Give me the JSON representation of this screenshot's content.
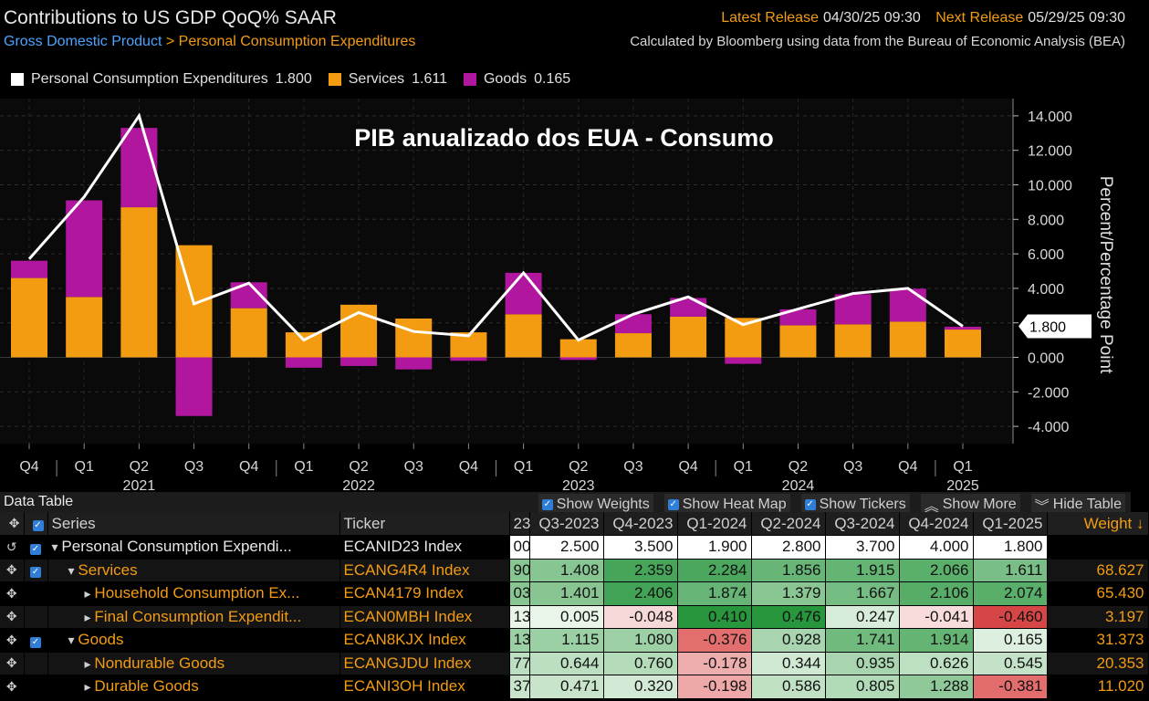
{
  "header": {
    "title": "Contributions to US GDP QoQ% SAAR",
    "breadcrumb_a": "Gross Domestic Product",
    "breadcrumb_sep": ">",
    "breadcrumb_b": "Personal Consumption Expenditures",
    "latest_label": "Latest Release",
    "latest_value": "04/30/25 09:30",
    "next_label": "Next Release",
    "next_value": "05/29/25 09:30",
    "source": "Calculated by Bloomberg using data from the Bureau of Economic Analysis (BEA)"
  },
  "legend": [
    {
      "label": "Personal Consumption Expenditures",
      "value": "1.800",
      "color": "#ffffff"
    },
    {
      "label": "Services",
      "value": "1.611",
      "color": "#f39c12"
    },
    {
      "label": "Goods",
      "value": "0.165",
      "color": "#b0169e"
    }
  ],
  "chart_data": {
    "type": "bar",
    "title": "PIB anualizado dos EUA - Consumo",
    "ylabel": "Percent/Percentage Point",
    "ylim": [
      -5,
      15
    ],
    "yticks": [
      "14.000",
      "12.000",
      "10.000",
      "8.000",
      "6.000",
      "4.000",
      "2.000",
      "0.000",
      "-2.000",
      "-4.000"
    ],
    "ytick_values": [
      14,
      12,
      10,
      8,
      6,
      4,
      2,
      0,
      -2,
      -4
    ],
    "categories": [
      "Q4",
      "Q1",
      "Q2",
      "Q3",
      "Q4",
      "Q1",
      "Q2",
      "Q3",
      "Q4",
      "Q1",
      "Q2",
      "Q3",
      "Q4",
      "Q1",
      "Q2",
      "Q3",
      "Q4",
      "Q1"
    ],
    "year_labels": [
      {
        "label": "2021",
        "index": 2
      },
      {
        "label": "2022",
        "index": 6
      },
      {
        "label": "2023",
        "index": 10
      },
      {
        "label": "2024",
        "index": 14
      },
      {
        "label": "2025",
        "index": 17
      }
    ],
    "last_value_label": "1.800",
    "series": [
      {
        "name": "Services",
        "color": "#f39c12",
        "values": [
          4.6,
          3.5,
          8.7,
          6.5,
          2.85,
          1.45,
          3.05,
          2.25,
          1.45,
          2.5,
          1.05,
          1.4,
          2.359,
          2.284,
          1.856,
          1.915,
          2.066,
          1.611
        ]
      },
      {
        "name": "Goods",
        "color": "#b0169e",
        "values": [
          1.0,
          5.6,
          4.6,
          -3.4,
          1.5,
          -0.6,
          -0.5,
          -0.7,
          -0.2,
          2.4,
          -0.15,
          1.1,
          1.08,
          -0.376,
          0.928,
          1.741,
          1.914,
          0.165
        ]
      },
      {
        "name": "Personal Consumption Expenditures",
        "color": "#ffffff",
        "values": [
          5.7,
          9.3,
          14.0,
          3.1,
          4.3,
          1.0,
          2.6,
          1.5,
          1.25,
          4.9,
          1.0,
          2.5,
          3.5,
          1.9,
          2.8,
          3.7,
          4.0,
          1.8
        ]
      }
    ]
  },
  "data_table": {
    "title": "Data Table",
    "controls": [
      {
        "label": "Show Weights",
        "type": "checkbox"
      },
      {
        "label": "Show Heat Map",
        "type": "checkbox"
      },
      {
        "label": "Show Tickers",
        "type": "checkbox"
      },
      {
        "label": "Show More",
        "type": "button",
        "icon": "double-chevron-up"
      },
      {
        "label": "Hide Table",
        "type": "button",
        "icon": "double-chevron-down"
      }
    ],
    "columns": {
      "series": "Series",
      "ticker": "Ticker",
      "cut": "23",
      "periods": [
        "Q3-2023",
        "Q4-2023",
        "Q1-2024",
        "Q2-2024",
        "Q3-2024",
        "Q4-2024",
        "Q1-2025"
      ],
      "weight": "Weight ↓"
    },
    "rows": [
      {
        "name": "Personal Consumption Expendi...",
        "ticker": "ECANID23 Index",
        "cut": "00",
        "values": [
          "2.500",
          "3.500",
          "1.900",
          "2.800",
          "3.700",
          "4.000",
          "1.800"
        ],
        "weight": "",
        "level": 0,
        "checked": true,
        "expanded": true,
        "first_icon": "undo-icon"
      },
      {
        "name": "Services",
        "ticker": "ECANG4R4 Index",
        "cut": "90",
        "values": [
          "1.408",
          "2.359",
          "2.284",
          "1.856",
          "1.915",
          "2.066",
          "1.611"
        ],
        "weight": "68.627",
        "level": 1,
        "checked": true,
        "expanded": true,
        "first_icon": "crosshair-icon"
      },
      {
        "name": "Household Consumption Ex...",
        "ticker": "ECAN4179 Index",
        "cut": "03",
        "values": [
          "1.401",
          "2.406",
          "1.874",
          "1.379",
          "1.667",
          "2.106",
          "2.074"
        ],
        "weight": "65.430",
        "level": 2,
        "checked": false,
        "expanded": false,
        "first_icon": "crosshair-icon"
      },
      {
        "name": "Final Consumption Expendit...",
        "ticker": "ECAN0MBH Index",
        "cut": "13",
        "values": [
          "0.005",
          "-0.048",
          "0.410",
          "0.476",
          "0.247",
          "-0.041",
          "-0.460"
        ],
        "weight": "3.197",
        "level": 2,
        "checked": false,
        "expanded": false,
        "first_icon": "crosshair-icon"
      },
      {
        "name": "Goods",
        "ticker": "ECAN8KJX Index",
        "cut": "13",
        "values": [
          "1.115",
          "1.080",
          "-0.376",
          "0.928",
          "1.741",
          "1.914",
          "0.165"
        ],
        "weight": "31.373",
        "level": 1,
        "checked": true,
        "expanded": true,
        "first_icon": "crosshair-icon"
      },
      {
        "name": "Nondurable Goods",
        "ticker": "ECANGJDU Index",
        "cut": "77",
        "values": [
          "0.644",
          "0.760",
          "-0.178",
          "0.344",
          "0.935",
          "0.626",
          "0.545"
        ],
        "weight": "20.353",
        "level": 2,
        "checked": false,
        "expanded": false,
        "first_icon": "crosshair-icon"
      },
      {
        "name": "Durable Goods",
        "ticker": "ECANI3OH Index",
        "cut": "37",
        "values": [
          "0.471",
          "0.320",
          "-0.198",
          "0.586",
          "0.805",
          "1.288",
          "-0.381"
        ],
        "weight": "11.020",
        "level": 2,
        "checked": false,
        "expanded": false,
        "first_icon": "crosshair-icon"
      }
    ]
  }
}
